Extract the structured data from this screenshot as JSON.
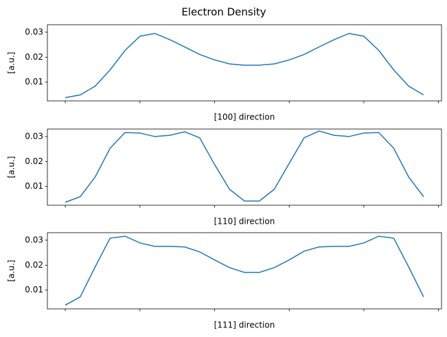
{
  "title": "Electron Density",
  "chart_data": [
    {
      "type": "line",
      "xlabel": "[100] direction",
      "ylabel": "[a.u.]",
      "x": [
        0,
        1,
        2,
        3,
        4,
        5,
        6,
        7,
        8,
        9,
        10,
        11,
        12,
        13,
        14,
        15,
        16,
        17,
        18,
        19,
        20,
        21,
        22,
        23,
        24
      ],
      "values": [
        0.0038,
        0.0049,
        0.0084,
        0.0149,
        0.0227,
        0.0284,
        0.0295,
        0.027,
        0.0241,
        0.0211,
        0.0189,
        0.0173,
        0.0168,
        0.0168,
        0.0173,
        0.0189,
        0.0211,
        0.0241,
        0.027,
        0.0295,
        0.0284,
        0.0227,
        0.0149,
        0.0084,
        0.0049
      ],
      "color": "#1f77b4",
      "xlim": [
        -1.2,
        25.2
      ],
      "xticks": [
        0,
        5,
        10,
        15,
        20,
        25
      ],
      "ylim": [
        0.0025,
        0.033
      ],
      "yticks": [
        0.01,
        0.02,
        0.03
      ]
    },
    {
      "type": "line",
      "xlabel": "[110] direction",
      "ylabel": "[a.u.]",
      "x": [
        0,
        1,
        2,
        3,
        4,
        5,
        6,
        7,
        8,
        9,
        10,
        11,
        12,
        13,
        14,
        15,
        16,
        17,
        18,
        19,
        20,
        21,
        22,
        23,
        24
      ],
      "values": [
        0.0037,
        0.0059,
        0.0138,
        0.0253,
        0.0316,
        0.0314,
        0.03,
        0.0305,
        0.0319,
        0.0295,
        0.0188,
        0.0089,
        0.0042,
        0.0042,
        0.0089,
        0.0193,
        0.0295,
        0.0322,
        0.0305,
        0.03,
        0.0314,
        0.0316,
        0.0253,
        0.0138,
        0.0059
      ],
      "color": "#1f77b4",
      "xlim": [
        -1.2,
        25.2
      ],
      "xticks": [
        0,
        5,
        10,
        15,
        20,
        25
      ],
      "ylim": [
        0.0025,
        0.033
      ],
      "yticks": [
        0.01,
        0.02,
        0.03
      ]
    },
    {
      "type": "line",
      "xlabel": "[111] direction",
      "ylabel": "[a.u.]",
      "x": [
        0,
        1,
        2,
        3,
        4,
        5,
        6,
        7,
        8,
        9,
        10,
        11,
        12,
        13,
        14,
        15,
        16,
        17,
        18,
        19,
        20,
        21,
        22,
        23,
        24
      ],
      "values": [
        0.004,
        0.0073,
        0.0193,
        0.0308,
        0.0316,
        0.0289,
        0.0275,
        0.0275,
        0.0273,
        0.0253,
        0.0221,
        0.019,
        0.0171,
        0.0171,
        0.019,
        0.0221,
        0.0256,
        0.0273,
        0.0275,
        0.0275,
        0.0289,
        0.0316,
        0.0308,
        0.0193,
        0.0073
      ],
      "color": "#1f77b4",
      "xlim": [
        -1.2,
        25.2
      ],
      "xticks": [
        0,
        5,
        10,
        15,
        20,
        25
      ],
      "ylim": [
        0.0025,
        0.033
      ],
      "yticks": [
        0.01,
        0.02,
        0.03
      ]
    }
  ]
}
